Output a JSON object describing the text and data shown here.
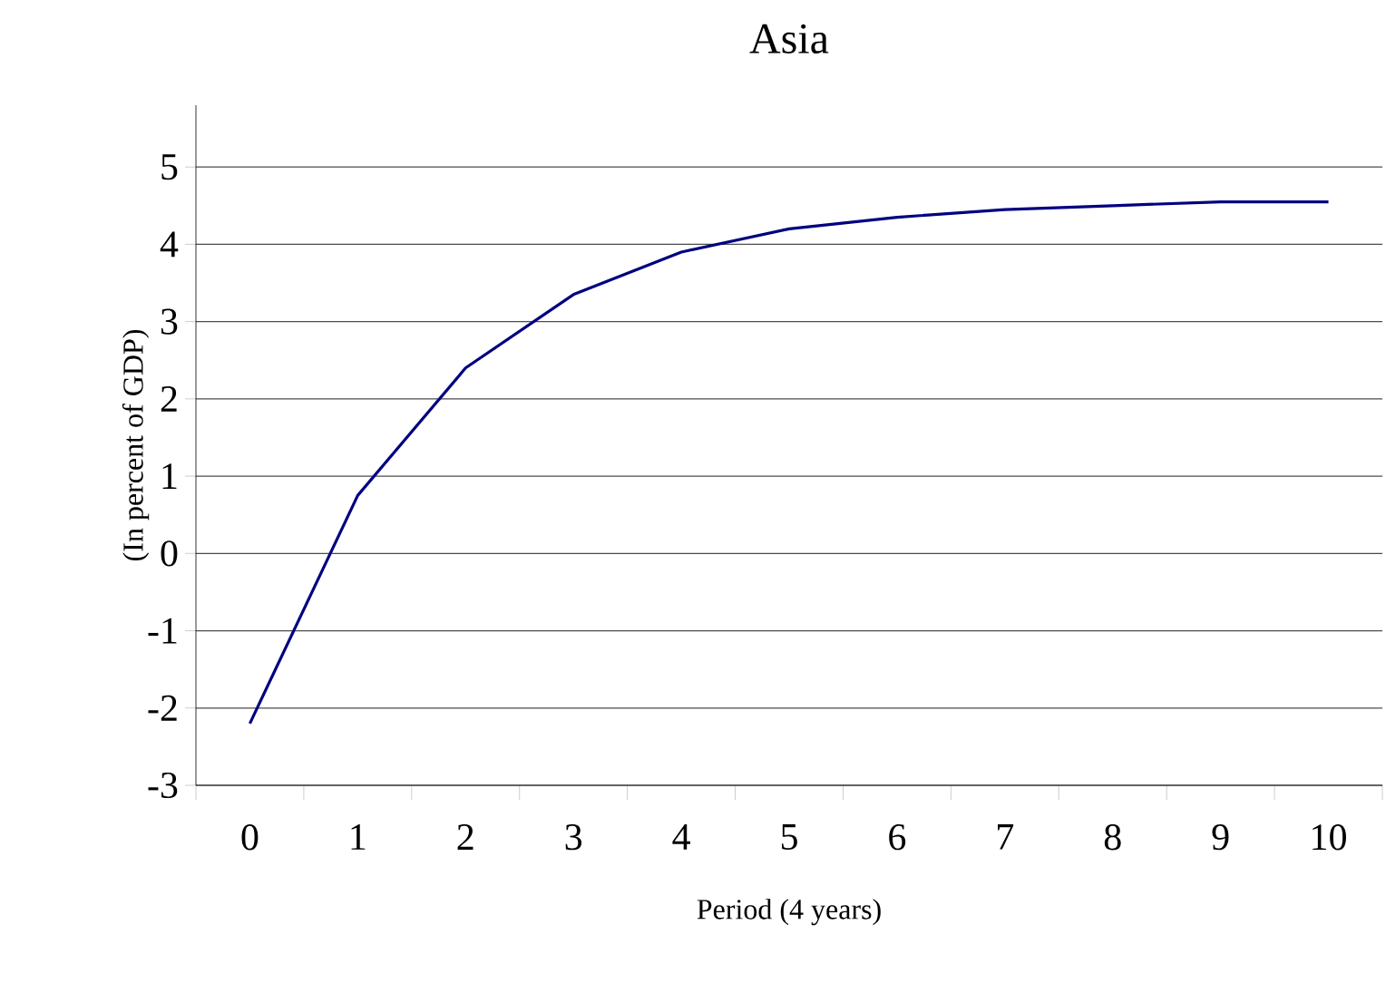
{
  "chart_data": {
    "type": "line",
    "title": "Asia",
    "xlabel": "Period (4 years)",
    "ylabel": "(In percent of GDP)",
    "categories": [
      "0",
      "1",
      "2",
      "3",
      "4",
      "5",
      "6",
      "7",
      "8",
      "9",
      "10"
    ],
    "series": [
      {
        "color": "#000080",
        "values": [
          -2.2,
          0.75,
          2.4,
          3.35,
          3.9,
          4.2,
          4.35,
          4.45,
          4.5,
          4.55,
          4.55
        ]
      }
    ],
    "ylim": [
      -3,
      5.8
    ],
    "yticks": [
      -3,
      -2,
      -1,
      0,
      1,
      2,
      3,
      4,
      5
    ],
    "grid": "y",
    "marker": "none",
    "line_style": "solid"
  }
}
